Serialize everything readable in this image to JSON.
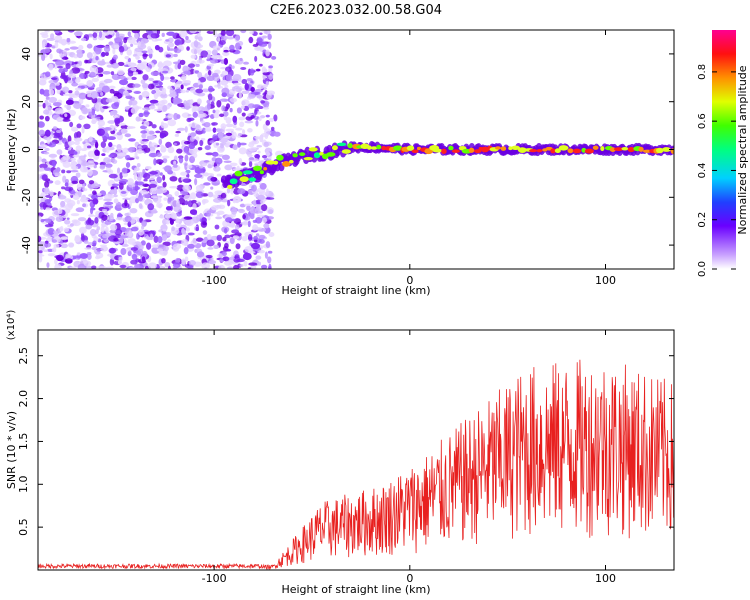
{
  "title": "C2E6.2023.032.00.58.G04",
  "chart_data": [
    {
      "type": "heatmap",
      "xlabel": "Height of straight line (km)",
      "ylabel": "Frequency (Hz)",
      "xlim": [
        -190,
        135
      ],
      "ylim": [
        -50,
        50
      ],
      "xticks": [
        -100,
        0,
        100
      ],
      "yticks": [
        -40,
        -20,
        0,
        20,
        40
      ],
      "colorbar": {
        "label": "Normalized spectral amplitude",
        "range": [
          0,
          0.97
        ],
        "ticks": [
          0.0,
          0.2,
          0.4,
          0.6,
          0.8
        ]
      },
      "ridge": [
        {
          "x": -95,
          "y": -14
        },
        {
          "x": -80,
          "y": -11
        },
        {
          "x": -70,
          "y": -7
        },
        {
          "x": -60,
          "y": -4
        },
        {
          "x": -50,
          "y": -2
        },
        {
          "x": -40,
          "y": -1
        },
        {
          "x": -30,
          "y": 1
        },
        {
          "x": -20,
          "y": 1
        },
        {
          "x": 0,
          "y": 0
        },
        {
          "x": 50,
          "y": 0
        },
        {
          "x": 100,
          "y": 0
        },
        {
          "x": 135,
          "y": 0
        }
      ]
    },
    {
      "type": "line",
      "xlabel": "Height of straight line (km)",
      "ylabel": "SNR (10 * v/v)",
      "yscale_label": "(x10⁴)",
      "xlim": [
        -190,
        135
      ],
      "ylim": [
        0,
        2.8
      ],
      "xticks": [
        -100,
        0,
        100
      ],
      "yticks": [
        0.5,
        1.0,
        1.5,
        2.0,
        2.5
      ],
      "color": "#e8201f",
      "envelope": [
        {
          "x": -190,
          "level": 0.03
        },
        {
          "x": -70,
          "level": 0.06
        },
        {
          "x": -45,
          "level": 0.8
        },
        {
          "x": -15,
          "level": 1.0
        },
        {
          "x": 5,
          "level": 1.3
        },
        {
          "x": 30,
          "level": 1.8
        },
        {
          "x": 60,
          "level": 2.4
        },
        {
          "x": 100,
          "level": 2.5
        },
        {
          "x": 135,
          "level": 2.2
        }
      ]
    }
  ]
}
